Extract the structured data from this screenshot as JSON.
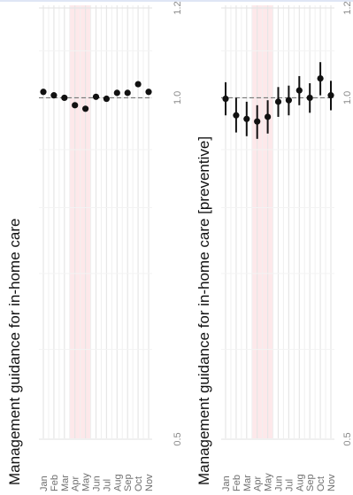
{
  "chart_data": [
    {
      "type": "scatter",
      "title": "Management guidance for in-home care",
      "categories": [
        "Jan",
        "Feb",
        "Mar",
        "Apr",
        "May",
        "Jun",
        "Jul",
        "Aug",
        "Sep",
        "Oct",
        "Nov"
      ],
      "y_ticks": [
        "0.5",
        "1.0",
        "1.2"
      ],
      "y_tick_values": [
        0.5,
        1.0,
        1.2
      ],
      "log_scale": true,
      "reference_line": 1.0,
      "highlight_months": [
        "Apr",
        "May"
      ],
      "series": [
        {
          "values": [
            1.012,
            1.005,
            1.0,
            0.985,
            0.978,
            1.002,
            0.998,
            1.01,
            1.01,
            1.028,
            1.012
          ],
          "lower": [
            1.009,
            1.002,
            0.997,
            0.982,
            0.975,
            0.999,
            0.995,
            1.007,
            1.007,
            1.025,
            1.009
          ],
          "upper": [
            1.015,
            1.008,
            1.003,
            0.988,
            0.981,
            1.005,
            1.001,
            1.013,
            1.013,
            1.031,
            1.015
          ]
        }
      ],
      "colors": {
        "point": "#111111",
        "highlight": "#fde8ea",
        "grid": "#e6e6e6",
        "refline": "#777777",
        "axis_text": "#8a8a8a"
      },
      "grid": true
    },
    {
      "type": "scatter",
      "title": "Management guidance for in-home care [preventive]",
      "categories": [
        "Jan",
        "Feb",
        "Mar",
        "Apr",
        "May",
        "Jun",
        "Jul",
        "Aug",
        "Sep",
        "Oct",
        "Nov"
      ],
      "y_ticks": [
        "0.5",
        "1.0",
        "1.2"
      ],
      "y_tick_values": [
        0.5,
        1.0,
        1.2
      ],
      "log_scale": true,
      "reference_line": 1.0,
      "highlight_months": [
        "Apr",
        "May"
      ],
      "series": [
        {
          "values": [
            0.998,
            0.965,
            0.958,
            0.953,
            0.962,
            0.992,
            0.995,
            1.015,
            1.0,
            1.04,
            1.005
          ],
          "lower": [
            0.965,
            0.932,
            0.925,
            0.92,
            0.93,
            0.962,
            0.965,
            0.985,
            0.97,
            1.005,
            0.975
          ],
          "upper": [
            1.032,
            1.0,
            0.992,
            0.985,
            0.995,
            1.022,
            1.025,
            1.045,
            1.03,
            1.075,
            1.035
          ]
        }
      ],
      "colors": {
        "point": "#111111",
        "highlight": "#fde8ea",
        "grid": "#e6e6e6",
        "refline": "#777777",
        "axis_text": "#8a8a8a"
      },
      "grid": true
    }
  ]
}
